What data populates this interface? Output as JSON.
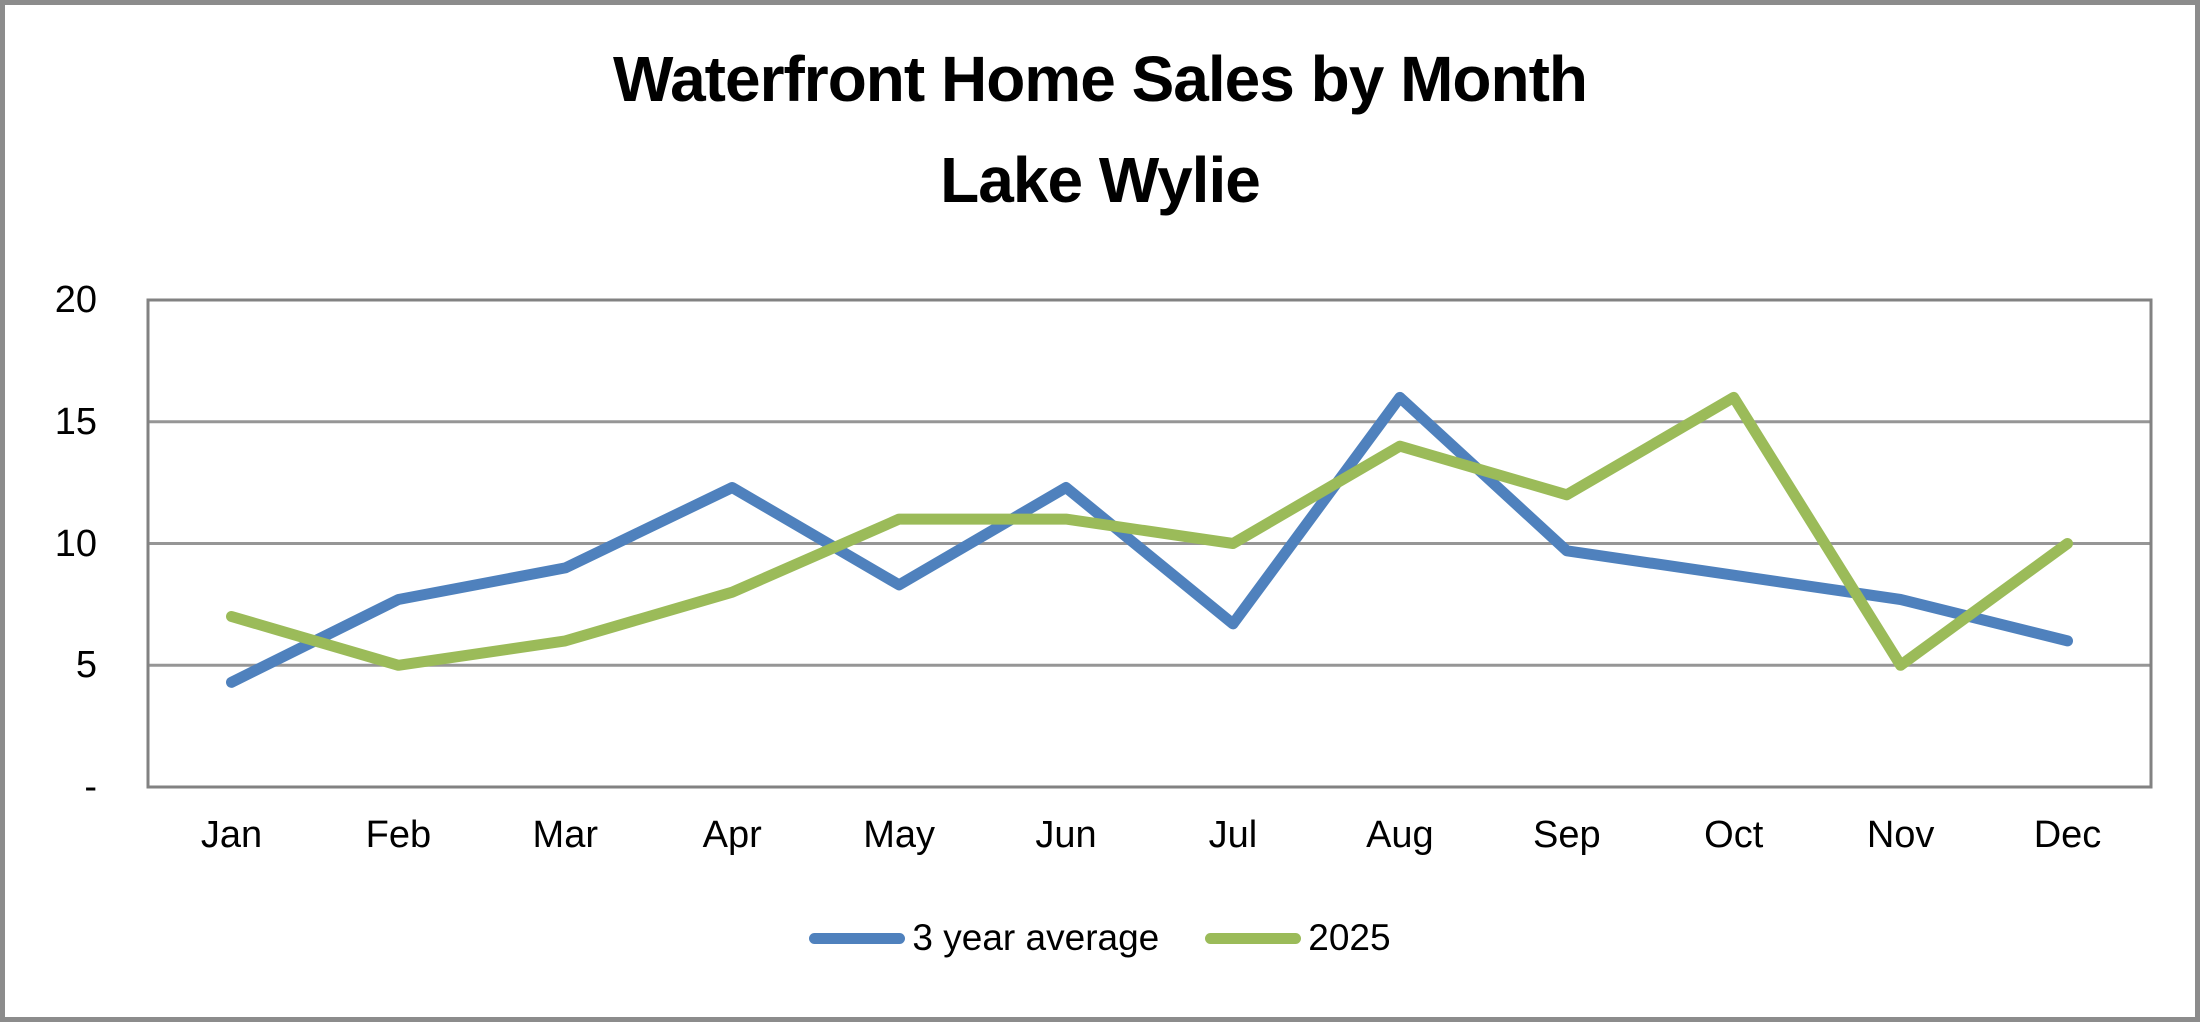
{
  "title": {
    "line1": "Waterfront Home Sales by Month",
    "line2": "Lake Wylie"
  },
  "chart_data": {
    "type": "line",
    "categories": [
      "Jan",
      "Feb",
      "Mar",
      "Apr",
      "May",
      "Jun",
      "Jul",
      "Aug",
      "Sep",
      "Oct",
      "Nov",
      "Dec"
    ],
    "series": [
      {
        "name": "3 year average",
        "color": "#4F81BD",
        "values": [
          4.3,
          7.7,
          9,
          12.3,
          8.3,
          12.3,
          6.7,
          16,
          9.7,
          8.7,
          7.7,
          6
        ]
      },
      {
        "name": "2025",
        "color": "#9BBB59",
        "values": [
          7,
          5,
          6,
          8,
          11,
          11,
          10,
          14,
          12,
          16,
          5,
          10
        ]
      }
    ],
    "title": "Waterfront Home Sales by Month Lake Wylie",
    "xlabel": "",
    "ylabel": "",
    "ylim": [
      0,
      20
    ],
    "yticks": [
      {
        "value": 0,
        "label": "-"
      },
      {
        "value": 5,
        "label": "5"
      },
      {
        "value": 10,
        "label": "10"
      },
      {
        "value": 15,
        "label": "15"
      },
      {
        "value": 20,
        "label": "20"
      }
    ],
    "grid": "horizontal",
    "legend_position": "bottom"
  },
  "colors": {
    "gridline": "#969696",
    "plot_border": "#828282",
    "frame_border": "#8C8C8C",
    "background": "#FFFFFF"
  }
}
